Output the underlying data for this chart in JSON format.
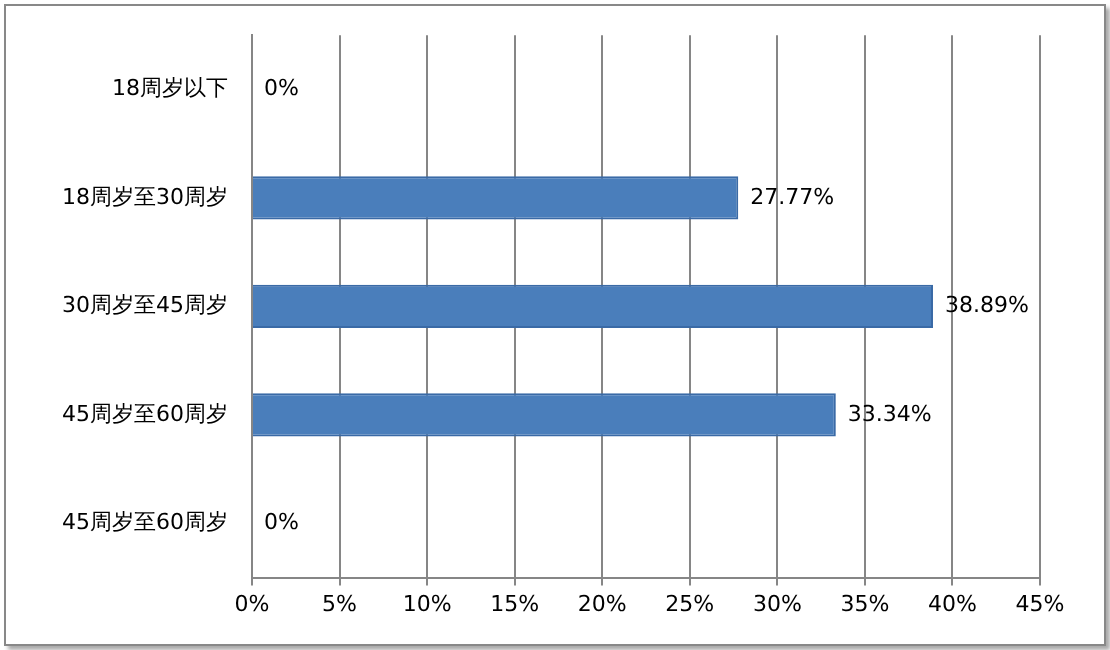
{
  "chart_data": {
    "type": "bar",
    "orientation": "horizontal",
    "categories": [
      "18周岁以下",
      "18周岁至30周岁",
      "30周岁至45周岁",
      "45周岁至60周岁",
      "45周岁至60周岁"
    ],
    "values": [
      0,
      27.77,
      38.89,
      33.34,
      0
    ],
    "value_labels": [
      "0%",
      "27.77%",
      "38.89%",
      "33.34%",
      "0%"
    ],
    "color": "#4a7ebb",
    "xlim": [
      0,
      45
    ],
    "xticks": [
      {
        "value": 0,
        "label": "0%"
      },
      {
        "value": 5,
        "label": "5%"
      },
      {
        "value": 10,
        "label": "10%"
      },
      {
        "value": 15,
        "label": "15%"
      },
      {
        "value": 20,
        "label": "20%"
      },
      {
        "value": 25,
        "label": "25%"
      },
      {
        "value": 30,
        "label": "30%"
      },
      {
        "value": 35,
        "label": "35%"
      },
      {
        "value": 40,
        "label": "40%"
      },
      {
        "value": 45,
        "label": "45%"
      }
    ],
    "grid": "x",
    "legend": false
  }
}
